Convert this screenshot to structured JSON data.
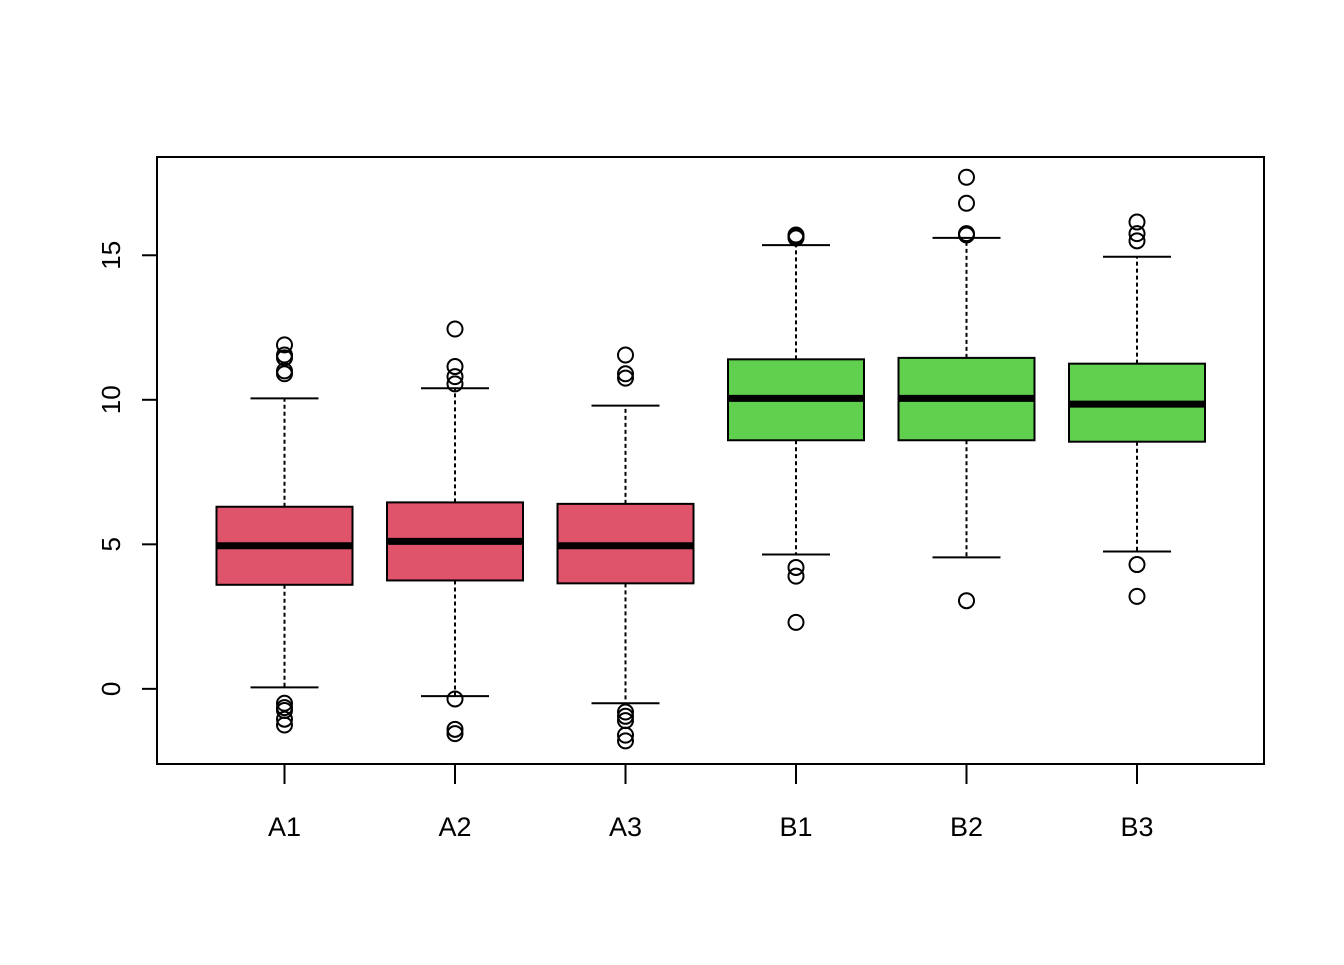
{
  "chart_data": {
    "type": "boxplot",
    "title": "",
    "xlabel": "",
    "ylabel": "",
    "categories": [
      "A1",
      "A2",
      "A3",
      "B1",
      "B2",
      "B3"
    ],
    "ylim": [
      -2.6,
      18.4
    ],
    "yticks": [
      0,
      5,
      10,
      15
    ],
    "grid": false,
    "legend": "none",
    "colors": {
      "A": "#DF536B",
      "B": "#61D04F",
      "outline": "#000000"
    },
    "boxes": [
      {
        "category": "A1",
        "group": "A",
        "whisker_low": 0.05,
        "q1": 3.6,
        "median": 4.95,
        "q3": 6.3,
        "whisker_high": 10.05,
        "outliers": [
          11.9,
          11.55,
          11.45,
          11.0,
          10.9,
          -0.5,
          -0.65,
          -0.75,
          -1.05,
          -1.25
        ]
      },
      {
        "category": "A2",
        "group": "A",
        "whisker_low": -0.25,
        "q1": 3.75,
        "median": 5.1,
        "q3": 6.45,
        "whisker_high": 10.4,
        "outliers": [
          12.45,
          11.15,
          10.8,
          10.55,
          -0.35,
          -1.4,
          -1.55
        ]
      },
      {
        "category": "A3",
        "group": "A",
        "whisker_low": -0.5,
        "q1": 3.65,
        "median": 4.95,
        "q3": 6.4,
        "whisker_high": 9.8,
        "outliers": [
          11.55,
          10.9,
          10.75,
          -0.8,
          -0.95,
          -1.1,
          -1.6,
          -1.8
        ]
      },
      {
        "category": "B1",
        "group": "B",
        "whisker_low": 4.65,
        "q1": 8.6,
        "median": 10.05,
        "q3": 11.4,
        "whisker_high": 15.35,
        "outliers": [
          15.7,
          15.65,
          15.6,
          4.2,
          3.9,
          2.3
        ]
      },
      {
        "category": "B2",
        "group": "B",
        "whisker_low": 4.55,
        "q1": 8.6,
        "median": 10.05,
        "q3": 11.45,
        "whisker_high": 15.6,
        "outliers": [
          17.7,
          16.8,
          15.75,
          15.7,
          3.05
        ]
      },
      {
        "category": "B3",
        "group": "B",
        "whisker_low": 4.75,
        "q1": 8.55,
        "median": 9.85,
        "q3": 11.25,
        "whisker_high": 14.95,
        "outliers": [
          16.15,
          15.75,
          15.5,
          4.3,
          3.2
        ]
      }
    ]
  }
}
